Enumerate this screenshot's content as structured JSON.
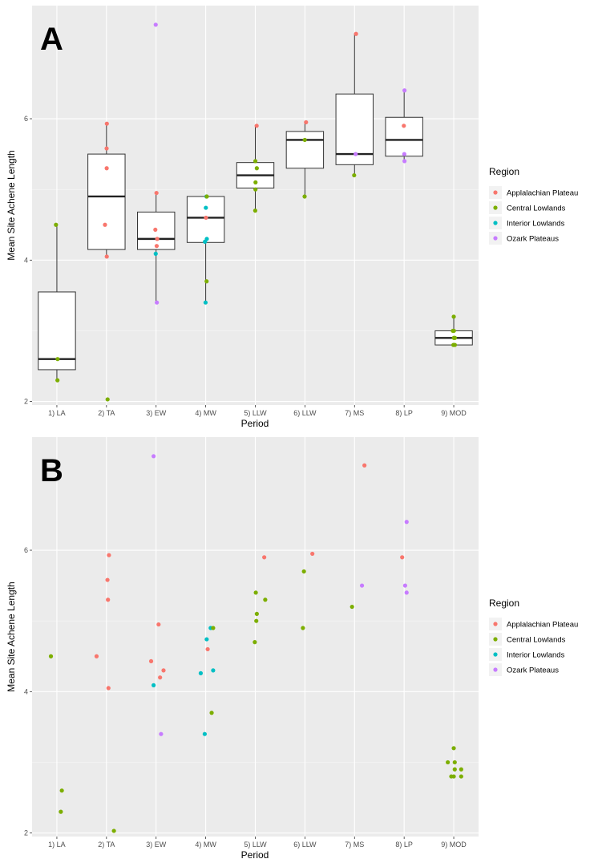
{
  "chart_data": [
    {
      "panel_label": "A",
      "type": "box",
      "xlabel": "Period",
      "ylabel": "Mean Site Achene Length",
      "categories": [
        "1) LA",
        "2) TA",
        "3) EW",
        "4) MW",
        "5) LLW",
        "6) LLW",
        "7) MS",
        "8) LP",
        "9) MOD"
      ],
      "y_ticks": [
        2,
        4,
        6
      ],
      "ylim": [
        1.95,
        7.6
      ],
      "legend_title": "Region",
      "legend_placement": "right",
      "legend": [
        {
          "name": "Applalachian Plateau",
          "color": "#F8766D"
        },
        {
          "name": "Central Lowlands",
          "color": "#7CAE00"
        },
        {
          "name": "Interior Lowlands",
          "color": "#00BFC4"
        },
        {
          "name": "Ozark Plateaus",
          "color": "#C77CFF"
        }
      ],
      "boxes": [
        {
          "min": 2.3,
          "q1": 2.45,
          "median": 2.6,
          "q3": 3.55,
          "max": 4.5
        },
        {
          "min": 4.05,
          "q1": 4.15,
          "median": 4.9,
          "q3": 5.5,
          "max": 5.93
        },
        {
          "min": 3.4,
          "q1": 4.15,
          "median": 4.3,
          "q3": 4.68,
          "max": 4.95
        },
        {
          "min": 3.4,
          "q1": 4.25,
          "median": 4.6,
          "q3": 4.9,
          "max": 4.9
        },
        {
          "min": 4.7,
          "q1": 5.02,
          "median": 5.2,
          "q3": 5.38,
          "max": 5.9
        },
        {
          "min": 4.9,
          "q1": 5.3,
          "median": 5.7,
          "q3": 5.82,
          "max": 5.95
        },
        {
          "min": 5.2,
          "q1": 5.35,
          "median": 5.5,
          "q3": 6.35,
          "max": 7.2
        },
        {
          "min": 5.4,
          "q1": 5.47,
          "median": 5.7,
          "q3": 6.02,
          "max": 6.4
        },
        {
          "min": 2.8,
          "q1": 2.8,
          "median": 2.9,
          "q3": 3.0,
          "max": 3.2
        }
      ]
    },
    {
      "panel_label": "B",
      "type": "scatter",
      "xlabel": "Period",
      "ylabel": "Mean Site Achene Length",
      "categories": [
        "1) LA",
        "2) TA",
        "3) EW",
        "4) MW",
        "5) LLW",
        "6) LLW",
        "7) MS",
        "8) LP",
        "9) MOD"
      ],
      "y_ticks": [
        2,
        4,
        6
      ],
      "ylim": [
        1.95,
        7.6
      ],
      "legend_title": "Region",
      "legend_placement": "right",
      "legend": [
        {
          "name": "Applalachian Plateau",
          "color": "#F8766D"
        },
        {
          "name": "Central Lowlands",
          "color": "#7CAE00"
        },
        {
          "name": "Interior Lowlands",
          "color": "#00BFC4"
        },
        {
          "name": "Ozark Plateaus",
          "color": "#C77CFF"
        }
      ],
      "points": [
        {
          "x": 1,
          "y": 4.5,
          "region": 1
        },
        {
          "x": 1,
          "y": 2.6,
          "region": 1
        },
        {
          "x": 1,
          "y": 2.3,
          "region": 1
        },
        {
          "x": 2,
          "y": 5.93,
          "region": 0
        },
        {
          "x": 2,
          "y": 5.58,
          "region": 0
        },
        {
          "x": 2,
          "y": 5.3,
          "region": 0
        },
        {
          "x": 2,
          "y": 4.5,
          "region": 0
        },
        {
          "x": 2,
          "y": 4.05,
          "region": 0
        },
        {
          "x": 2,
          "y": 2.03,
          "region": 1
        },
        {
          "x": 3,
          "y": 7.33,
          "region": 3
        },
        {
          "x": 3,
          "y": 4.95,
          "region": 0
        },
        {
          "x": 3,
          "y": 4.43,
          "region": 0
        },
        {
          "x": 3,
          "y": 4.3,
          "region": 0
        },
        {
          "x": 3,
          "y": 4.2,
          "region": 0
        },
        {
          "x": 3,
          "y": 4.09,
          "region": 2
        },
        {
          "x": 3,
          "y": 3.4,
          "region": 3
        },
        {
          "x": 4,
          "y": 4.9,
          "region": 2
        },
        {
          "x": 4,
          "y": 4.9,
          "region": 1
        },
        {
          "x": 4,
          "y": 4.74,
          "region": 2
        },
        {
          "x": 4,
          "y": 4.6,
          "region": 0
        },
        {
          "x": 4,
          "y": 4.3,
          "region": 2
        },
        {
          "x": 4,
          "y": 4.26,
          "region": 2
        },
        {
          "x": 4,
          "y": 3.7,
          "region": 1
        },
        {
          "x": 4,
          "y": 3.4,
          "region": 2
        },
        {
          "x": 5,
          "y": 5.9,
          "region": 0
        },
        {
          "x": 5,
          "y": 5.4,
          "region": 1
        },
        {
          "x": 5,
          "y": 5.3,
          "region": 1
        },
        {
          "x": 5,
          "y": 5.1,
          "region": 1
        },
        {
          "x": 5,
          "y": 5.0,
          "region": 1
        },
        {
          "x": 5,
          "y": 4.7,
          "region": 1
        },
        {
          "x": 6,
          "y": 5.95,
          "region": 0
        },
        {
          "x": 6,
          "y": 5.7,
          "region": 1
        },
        {
          "x": 6,
          "y": 4.9,
          "region": 1
        },
        {
          "x": 7,
          "y": 7.2,
          "region": 0
        },
        {
          "x": 7,
          "y": 5.5,
          "region": 3
        },
        {
          "x": 7,
          "y": 5.2,
          "region": 1
        },
        {
          "x": 8,
          "y": 6.4,
          "region": 3
        },
        {
          "x": 8,
          "y": 5.9,
          "region": 0
        },
        {
          "x": 8,
          "y": 5.5,
          "region": 3
        },
        {
          "x": 8,
          "y": 5.4,
          "region": 3
        },
        {
          "x": 9,
          "y": 3.2,
          "region": 1
        },
        {
          "x": 9,
          "y": 3.0,
          "region": 1
        },
        {
          "x": 9,
          "y": 3.0,
          "region": 1
        },
        {
          "x": 9,
          "y": 2.9,
          "region": 1
        },
        {
          "x": 9,
          "y": 2.9,
          "region": 1
        },
        {
          "x": 9,
          "y": 2.8,
          "region": 1
        },
        {
          "x": 9,
          "y": 2.8,
          "region": 1
        },
        {
          "x": 9,
          "y": 2.8,
          "region": 1
        }
      ]
    }
  ]
}
